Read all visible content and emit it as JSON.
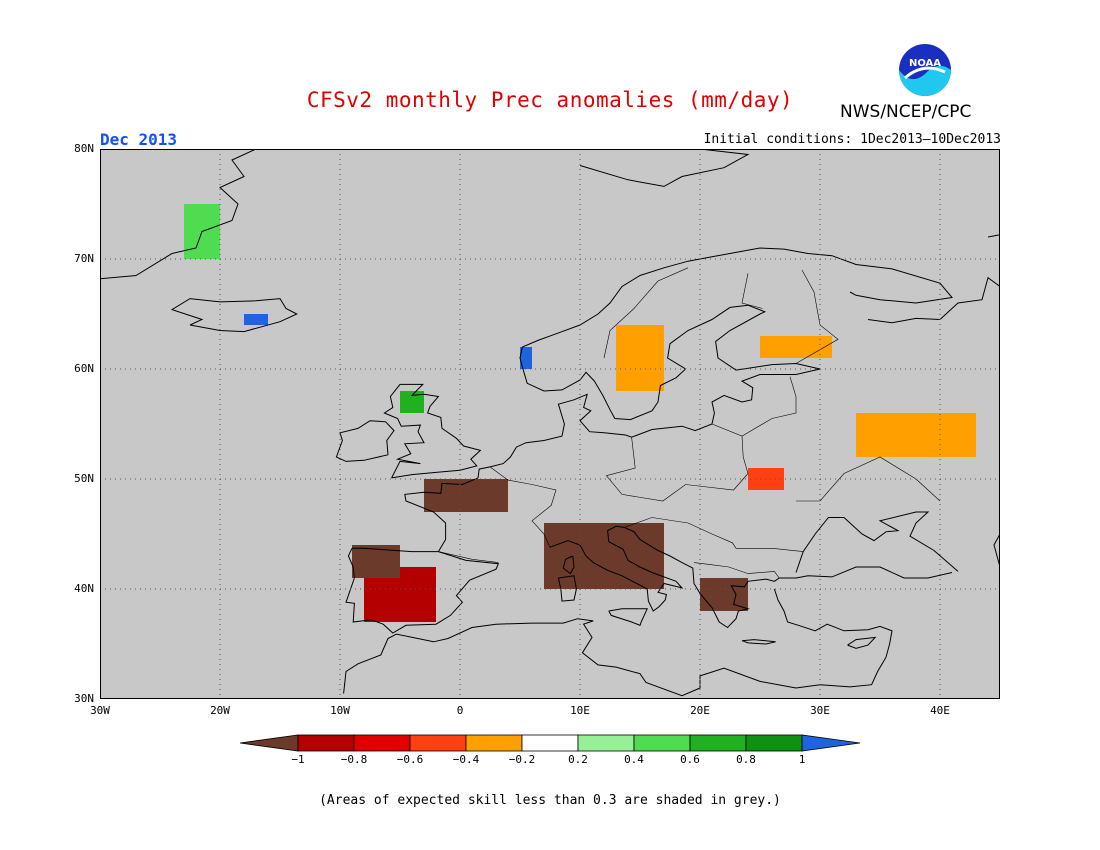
{
  "title": "CFSv2 monthly Prec anomalies (mm/day)",
  "agency": "NWS/NCEP/CPC",
  "logo_text": "NOAA",
  "month": "Dec 2013",
  "initial_conditions": "Initial conditions: 1Dec2013–10Dec2013",
  "footnote": "(Areas of expected skill less than 0.3 are shaded in grey.)",
  "map": {
    "lon_range": [
      -30,
      45
    ],
    "lat_range": [
      30,
      80
    ],
    "background": "#c8c8c8",
    "gridlines": "dotted",
    "lat_labels": [
      "80N",
      "70N",
      "60N",
      "50N",
      "40N",
      "30N"
    ],
    "lon_labels": [
      "30W",
      "20W",
      "10W",
      "0",
      "10E",
      "20E",
      "30E",
      "40E"
    ]
  },
  "legend": {
    "tick_labels": [
      "−1",
      "−0.8",
      "−0.6",
      "−0.4",
      "−0.2",
      "0.2",
      "0.4",
      "0.6",
      "0.8",
      "1"
    ],
    "colors": [
      "#6b3a2a",
      "#b40000",
      "#e00000",
      "#ff4010",
      "#ffa000",
      "#ffffff",
      "#96f096",
      "#50dc50",
      "#20b020",
      "#109010",
      "#1e64dc"
    ],
    "category_labels": [
      "< −1",
      "−1 to −0.8",
      "−0.8 to −0.6",
      "−0.6 to −0.4",
      "−0.4 to −0.2",
      "−0.2 to 0.2",
      "0.2 to 0.4",
      "0.4 to 0.6",
      "0.6 to 0.8",
      "0.8 to 1",
      "> 1"
    ]
  },
  "anomaly_patches": [
    {
      "region": "Spain",
      "category": "-1 to -0.8",
      "lon": [
        -8,
        -2
      ],
      "lat": [
        37,
        42
      ]
    },
    {
      "region": "Northern Spain",
      "category": "< -1",
      "lon": [
        -9,
        -5
      ],
      "lat": [
        41,
        44
      ]
    },
    {
      "region": "France",
      "category": "< -1",
      "lon": [
        -3,
        4
      ],
      "lat": [
        47,
        50
      ]
    },
    {
      "region": "Italy",
      "category": "< -1",
      "lon": [
        7,
        17
      ],
      "lat": [
        40,
        46
      ]
    },
    {
      "region": "Balkans",
      "category": "< -1",
      "lon": [
        20,
        24
      ],
      "lat": [
        38,
        41
      ]
    },
    {
      "region": "Southern Scandinavia",
      "category": "-0.4 to -0.2",
      "lon": [
        13,
        17
      ],
      "lat": [
        58,
        64
      ]
    },
    {
      "region": "Finland",
      "category": "-0.4 to -0.2",
      "lon": [
        25,
        31
      ],
      "lat": [
        61,
        63
      ]
    },
    {
      "region": "Western Russia",
      "category": "-0.4 to -0.2",
      "lon": [
        33,
        43
      ],
      "lat": [
        52,
        56
      ]
    },
    {
      "region": "Ukraine",
      "category": "-0.6 to -0.4",
      "lon": [
        24,
        27
      ],
      "lat": [
        49,
        51
      ]
    },
    {
      "region": "Norway coast",
      "category": "> 1",
      "lon": [
        5,
        6
      ],
      "lat": [
        60,
        62
      ]
    },
    {
      "region": "Greenland east",
      "category": "0.4 to 0.6",
      "lon": [
        -23,
        -20
      ],
      "lat": [
        70,
        75
      ]
    },
    {
      "region": "Iceland",
      "category": "> 1",
      "lon": [
        -18,
        -16
      ],
      "lat": [
        64,
        65
      ]
    },
    {
      "region": "Scotland",
      "category": "0.6 to 0.8",
      "lon": [
        -5,
        -3
      ],
      "lat": [
        56,
        58
      ]
    }
  ]
}
